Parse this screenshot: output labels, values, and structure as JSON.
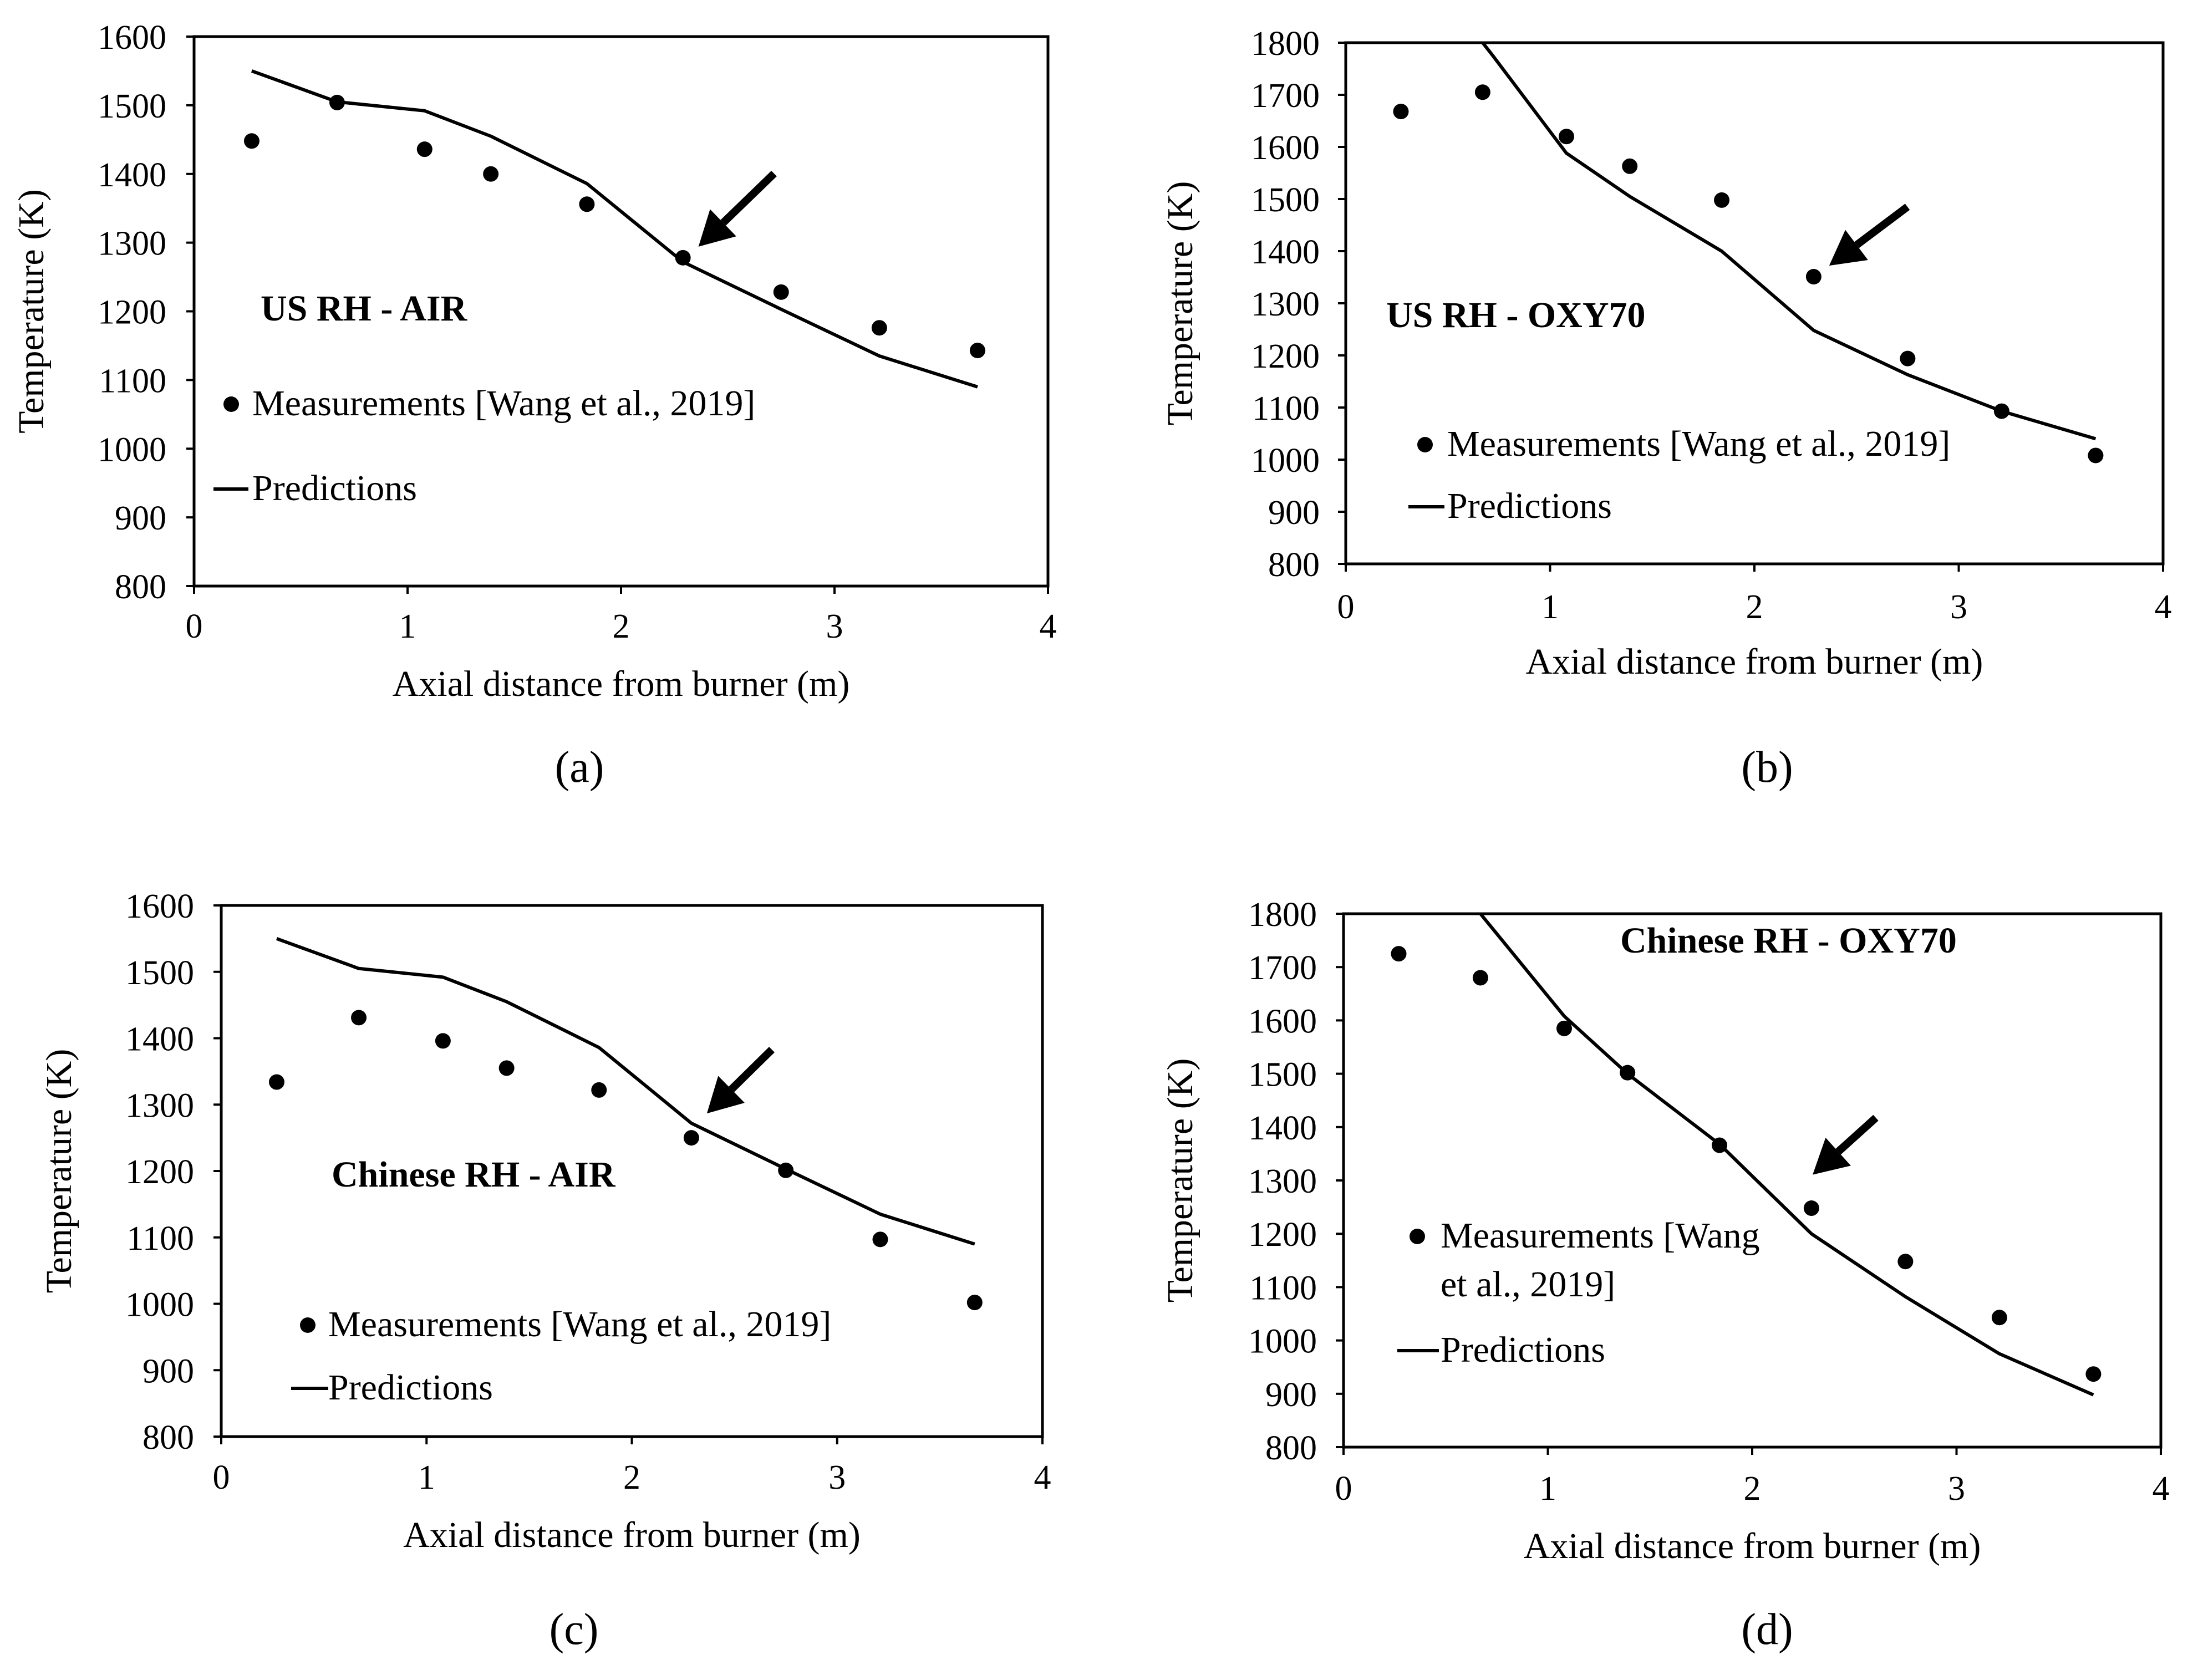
{
  "figure": {
    "measurement_marker": "filled-circle",
    "prediction_line": "solid-black-line",
    "highlight_icon": "arrow-icon"
  },
  "chart_data": [
    {
      "type": "line",
      "panel_caption": "(a)",
      "annotation": "US RH - AIR",
      "xlabel": "Axial distance from burner (m)",
      "ylabel": "Temperature (K)",
      "xlim": [
        0,
        4
      ],
      "ylim": [
        800,
        1600
      ],
      "xticks": [
        0,
        1,
        2,
        3,
        4
      ],
      "yticks": [
        800,
        900,
        1000,
        1100,
        1200,
        1300,
        1400,
        1500,
        1600
      ],
      "legend": {
        "measurements": "Measurements [Wang et al., 2019]",
        "predictions": "Predictions"
      },
      "legend_placement": "bottom-left",
      "measurements": {
        "x": [
          0.27,
          0.67,
          1.08,
          1.39,
          1.84,
          2.29,
          2.75,
          3.21,
          3.67
        ],
        "y": [
          1448,
          1504,
          1436,
          1400,
          1356,
          1278,
          1228,
          1176,
          1143
        ]
      },
      "predictions": {
        "x": [
          0.27,
          0.67,
          1.08,
          1.39,
          1.84,
          2.29,
          2.75,
          3.21,
          3.67
        ],
        "y": [
          1550,
          1505,
          1492,
          1455,
          1386,
          1272,
          1203,
          1135,
          1090
        ]
      },
      "arrow_target": {
        "x": 2.29,
        "y": 1278
      }
    },
    {
      "type": "line",
      "panel_caption": "(b)",
      "annotation": "US RH - OXY70",
      "xlabel": "Axial distance from burner (m)",
      "ylabel": "Temperature (K)",
      "xlim": [
        0,
        4
      ],
      "ylim": [
        800,
        1800
      ],
      "xticks": [
        0,
        1,
        2,
        3,
        4
      ],
      "yticks": [
        800,
        900,
        1000,
        1100,
        1200,
        1300,
        1400,
        1500,
        1600,
        1700,
        1800
      ],
      "legend": {
        "measurements": "Measurements [Wang et al., 2019]",
        "predictions": "Predictions"
      },
      "legend_placement": "bottom-left",
      "measurements": {
        "x": [
          0.27,
          0.67,
          1.08,
          1.39,
          1.84,
          2.29,
          2.75,
          3.21,
          3.67
        ],
        "y": [
          1668,
          1705,
          1620,
          1563,
          1498,
          1351,
          1194,
          1093,
          1008
        ]
      },
      "predictions": {
        "x": [
          0.67,
          0.72,
          1.08,
          1.39,
          1.84,
          2.29,
          2.75,
          3.21,
          3.67
        ],
        "y": [
          1800,
          1775,
          1588,
          1505,
          1400,
          1248,
          1163,
          1093,
          1040
        ]
      },
      "arrow_target": {
        "x": 2.29,
        "y": 1351
      }
    },
    {
      "type": "line",
      "panel_caption": "(c)",
      "annotation": "Chinese RH - AIR",
      "xlabel": "Axial distance from burner (m)",
      "ylabel": "Temperature (K)",
      "xlim": [
        0,
        4
      ],
      "ylim": [
        800,
        1600
      ],
      "xticks": [
        0,
        1,
        2,
        3,
        4
      ],
      "yticks": [
        800,
        900,
        1000,
        1100,
        1200,
        1300,
        1400,
        1500,
        1600
      ],
      "legend": {
        "measurements": "Measurements [Wang et al., 2019]",
        "predictions": "Predictions"
      },
      "legend_placement": "bottom-left",
      "measurements": {
        "x": [
          0.27,
          0.67,
          1.08,
          1.39,
          1.84,
          2.29,
          2.75,
          3.21,
          3.67
        ],
        "y": [
          1334,
          1431,
          1396,
          1355,
          1322,
          1250,
          1201,
          1097,
          1002
        ]
      },
      "predictions": {
        "x": [
          0.27,
          0.67,
          1.08,
          1.39,
          1.84,
          2.29,
          2.75,
          3.21,
          3.67
        ],
        "y": [
          1550,
          1505,
          1492,
          1455,
          1386,
          1272,
          1203,
          1135,
          1090
        ]
      },
      "arrow_target": {
        "x": 2.29,
        "y": 1270
      }
    },
    {
      "type": "line",
      "panel_caption": "(d)",
      "annotation": "Chinese RH - OXY70",
      "xlabel": "Axial distance from burner (m)",
      "ylabel": "Temperature (K)",
      "xlim": [
        0,
        4
      ],
      "ylim": [
        800,
        1800
      ],
      "xticks": [
        0,
        1,
        2,
        3,
        4
      ],
      "yticks": [
        800,
        900,
        1000,
        1100,
        1200,
        1300,
        1400,
        1500,
        1600,
        1700,
        1800
      ],
      "legend": {
        "measurements_line1": "Measurements [Wang",
        "measurements_line2": "et al., 2019]",
        "predictions": "Predictions"
      },
      "legend_placement": "bottom-left",
      "measurements": {
        "x": [
          0.27,
          0.67,
          1.08,
          1.39,
          1.84,
          2.29,
          2.75,
          3.21,
          3.67
        ],
        "y": [
          1725,
          1680,
          1585,
          1502,
          1366,
          1248,
          1148,
          1043,
          937
        ]
      },
      "predictions": {
        "x": [
          0.67,
          1.08,
          1.39,
          1.84,
          2.29,
          2.75,
          3.21,
          3.67
        ],
        "y": [
          1800,
          1608,
          1500,
          1368,
          1200,
          1082,
          975,
          898
        ]
      },
      "arrow_target": {
        "x": 2.22,
        "y": 1290
      }
    }
  ]
}
